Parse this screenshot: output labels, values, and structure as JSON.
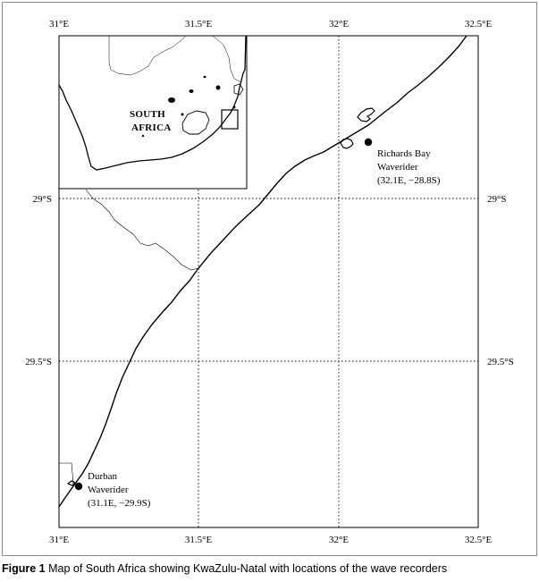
{
  "axes": {
    "top_ticks": [
      "31°E",
      "31.5°E",
      "32°E",
      "32.5°E"
    ],
    "bottom_ticks": [
      "31°E",
      "31.5°E",
      "32°E",
      "32.5°E"
    ],
    "left_ticks": [
      "29°S",
      "29.5°S"
    ],
    "right_ticks": [
      "29°S",
      "29.5°S"
    ]
  },
  "stations": [
    {
      "name_line1": "Richards Bay",
      "name_line2": "Waverider",
      "coords": "(32.1E, −28.8S)"
    },
    {
      "name_line1": "Durban",
      "name_line2": "Waverider",
      "coords": "(31.1E, −29.9S)"
    }
  ],
  "inset": {
    "country_line1": "SOUTH",
    "country_line2": "AFRICA"
  },
  "caption": {
    "label": "Figure 1",
    "text": " Map of South Africa showing KwaZulu-Natal with locations of the wave recorders"
  }
}
